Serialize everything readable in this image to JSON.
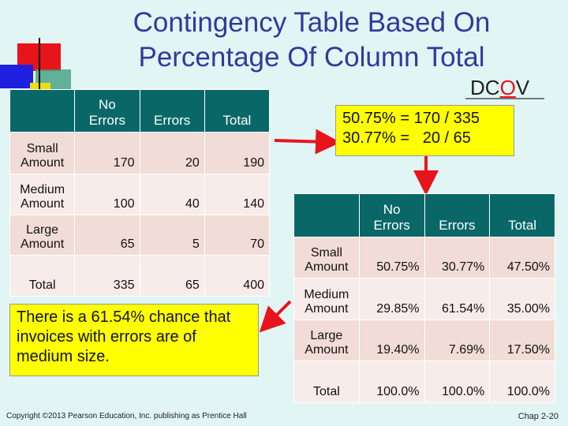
{
  "title": [
    "Contingency Table Based On",
    "Percentage Of Column Total"
  ],
  "logo": [
    "DC",
    "O",
    "V"
  ],
  "table1": {
    "header": [
      "",
      "No Errors",
      "Errors",
      "Total"
    ],
    "rows": [
      [
        "Small Amount",
        "170",
        "20",
        "190"
      ],
      [
        "Medium Amount",
        "100",
        "40",
        "140"
      ],
      [
        "Large Amount",
        "65",
        "5",
        "70"
      ],
      [
        "Total",
        "335",
        "65",
        "400"
      ]
    ]
  },
  "calc_box": [
    "50.75% = 170 / 335",
    "30.77% =   20 / 65"
  ],
  "table2": {
    "header": [
      "",
      "No Errors",
      "Errors",
      "Total"
    ],
    "rows": [
      [
        "Small Amount",
        "50.75%",
        "30.77%",
        "47.50%"
      ],
      [
        "Medium Amount",
        "29.85%",
        "61.54%",
        "35.00%"
      ],
      [
        "Large Amount",
        "19.40%",
        "7.69%",
        "17.50%"
      ],
      [
        "Total",
        "100.0%",
        "100.0%",
        "100.0%"
      ]
    ]
  },
  "note": "There is a 61.54% chance that invoices with errors are of medium size.",
  "footer": {
    "copyright": "Copyright ©2013 Pearson Education, Inc. publishing as Prentice Hall",
    "page": "Chap 2-20"
  }
}
